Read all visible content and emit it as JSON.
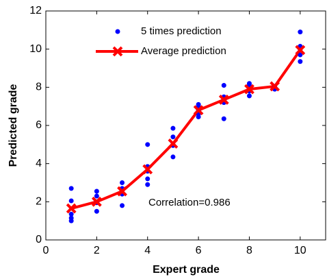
{
  "chart_data": {
    "type": "line",
    "x_label": "Expert grade",
    "y_label": "Predicted grade",
    "annotation": "Correlation=0.986",
    "xlim": [
      0,
      11
    ],
    "ylim": [
      0,
      12
    ],
    "xticks": [
      0,
      2,
      4,
      6,
      8,
      10
    ],
    "yticks": [
      0,
      2,
      4,
      6,
      8,
      10,
      12
    ],
    "grid": false,
    "legend": "top",
    "series": [
      {
        "name": "5 times prediction",
        "color": "#0000ff",
        "mode": "markers",
        "x": [
          1,
          1,
          1,
          1,
          1,
          2,
          2,
          2,
          2,
          2,
          3,
          3,
          3,
          3,
          3,
          4,
          4,
          4,
          4,
          4,
          5,
          5,
          5,
          5,
          5,
          6,
          6,
          6,
          6,
          6,
          7,
          7,
          7,
          7,
          7,
          8,
          8,
          8,
          8,
          8,
          9,
          9,
          9,
          9,
          9,
          10,
          10,
          10,
          10,
          10
        ],
        "values": [
          2.7,
          2.05,
          1.35,
          1.15,
          1.0,
          2.55,
          2.3,
          2.0,
          1.95,
          1.5,
          3.0,
          2.7,
          2.5,
          2.4,
          1.8,
          5.0,
          3.85,
          3.6,
          3.2,
          2.9,
          5.85,
          5.4,
          5.0,
          4.95,
          4.35,
          7.1,
          7.0,
          6.8,
          6.6,
          6.45,
          8.1,
          7.5,
          7.35,
          7.2,
          6.35,
          8.2,
          8.1,
          8.0,
          7.8,
          7.55,
          8.05,
          8.0,
          8.0,
          7.95,
          7.9,
          10.9,
          10.15,
          10.0,
          9.7,
          9.35
        ]
      },
      {
        "name": "Average prediction",
        "color": "#ff0000",
        "mode": "lines+markers",
        "x": [
          1,
          2,
          3,
          4,
          5,
          6,
          7,
          8,
          9,
          10
        ],
        "values": [
          1.65,
          2.0,
          2.55,
          3.7,
          5.05,
          6.8,
          7.35,
          7.9,
          8.05,
          9.95
        ]
      }
    ]
  }
}
